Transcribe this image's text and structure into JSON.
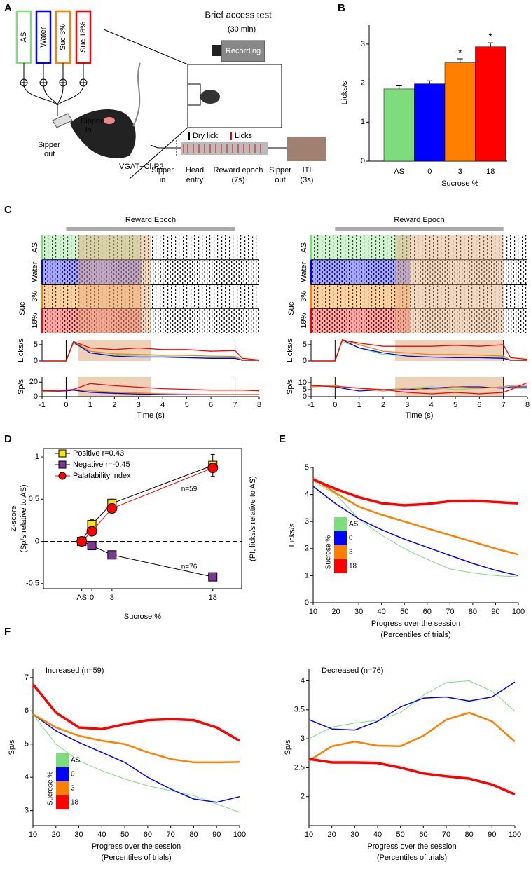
{
  "panel_labels": [
    "A",
    "B",
    "C",
    "D",
    "E",
    "F"
  ],
  "schematic": {
    "title": "Brief access test",
    "duration": "(30 min)",
    "camera": "Recording",
    "tubes": [
      "AS",
      "Water",
      "Suc 3%",
      "Suc 18%"
    ],
    "sipper_in": [
      "Sipper",
      "in"
    ],
    "sipper_out": [
      "Sipper",
      "out"
    ],
    "strain": "VGAT−ChR2",
    "dry_lick": "Dry lick",
    "licks": "Licks",
    "steps": [
      [
        "Sipper",
        "in"
      ],
      [
        "Head",
        "entry"
      ],
      [
        "Reward epoch",
        "(7s)"
      ],
      [
        "Sipper",
        "out"
      ],
      [
        "ITI",
        "(3s)"
      ]
    ]
  },
  "chart_data": [
    {
      "type": "bar",
      "ylabel": "Licks/s",
      "xlabel": "Sucrose %",
      "categories": [
        "AS",
        "0",
        "3",
        "18"
      ],
      "values": [
        1.85,
        1.98,
        2.52,
        2.93
      ],
      "errors": [
        0.08,
        0.08,
        0.1,
        0.1
      ],
      "significance": [
        null,
        null,
        "*",
        "*"
      ],
      "colors": [
        "#7ddd7d",
        "#0000ff",
        "#ff7f00",
        "#ff0000"
      ],
      "ylim": [
        0,
        3.5
      ],
      "yticks": [
        0,
        1,
        2,
        3
      ]
    },
    {
      "type": "raster_traces",
      "epoch_label": "Reward Epoch",
      "epoch": [
        0,
        7
      ],
      "shade": [
        0.5,
        3.5
      ],
      "raster_rows": [
        "AS",
        "Water",
        "3%",
        "18%"
      ],
      "raster_group": "Suc",
      "colors": [
        "#7ddd7d",
        "#0000ff",
        "#ff7f00",
        "#ff0000"
      ],
      "xlabel": "Time (s)",
      "xlim": [
        -1,
        8
      ],
      "xticks": [
        -1,
        0,
        1,
        2,
        3,
        4,
        5,
        6,
        7,
        8
      ],
      "x": [
        -1,
        0,
        0.3,
        1,
        2,
        3,
        4,
        5,
        6,
        7,
        7.3,
        8
      ],
      "licks": {
        "ylabel": "Licks/s",
        "ylim": [
          0,
          6.5
        ],
        "yticks": [
          0,
          5
        ],
        "series": [
          {
            "color": "#7ddd7d",
            "values": [
              0,
              0,
              5.5,
              2.5,
              1.8,
              1.5,
              1.5,
              1.2,
              1,
              1,
              0.3,
              0.2
            ]
          },
          {
            "color": "#0000ff",
            "values": [
              0,
              0,
              5.8,
              2.5,
              1.5,
              1.2,
              1.2,
              1,
              0.8,
              0.8,
              0.2,
              0.1
            ]
          },
          {
            "color": "#ff7f00",
            "values": [
              0,
              0,
              6,
              3,
              2.2,
              2,
              1.8,
              1.7,
              1.5,
              1.4,
              0.3,
              0.2
            ]
          },
          {
            "color": "#ff0000",
            "values": [
              0,
              0,
              6,
              4,
              3.5,
              4,
              3.5,
              3.5,
              3,
              3.2,
              0.8,
              0.3
            ]
          }
        ]
      },
      "spikes": {
        "ylabel": "Sp/s",
        "ylim": [
          0,
          27
        ],
        "yticks": [
          0,
          20
        ],
        "series": [
          {
            "color": "#7ddd7d",
            "values": [
              6,
              8,
              9,
              6,
              5,
              4,
              3,
              3,
              3,
              3,
              3,
              3
            ]
          },
          {
            "color": "#0000ff",
            "values": [
              7,
              8,
              9,
              6,
              4.5,
              3.5,
              3,
              2.5,
              2.5,
              2.5,
              2.5,
              2.5
            ]
          },
          {
            "color": "#ff7f00",
            "values": [
              7,
              9,
              10,
              8,
              6,
              5,
              4,
              3.5,
              3,
              3,
              3,
              3
            ]
          },
          {
            "color": "#ff0000",
            "values": [
              8,
              9,
              10,
              18,
              15,
              13,
              11,
              10,
              9,
              9,
              9,
              8
            ]
          }
        ]
      }
    },
    {
      "type": "raster_traces",
      "epoch_label": "Reward Epoch",
      "epoch": [
        0,
        7
      ],
      "shade": [
        2.5,
        7
      ],
      "raster_rows": [
        "AS",
        "Water",
        "3%",
        "18%"
      ],
      "raster_group": "Suc",
      "colors": [
        "#7ddd7d",
        "#0000ff",
        "#ff7f00",
        "#ff0000"
      ],
      "xlabel": "Time (s)",
      "xlim": [
        -1,
        8
      ],
      "xticks": [
        -1,
        0,
        1,
        2,
        3,
        4,
        5,
        6,
        7,
        8
      ],
      "x": [
        -1,
        0,
        0.3,
        1,
        2,
        3,
        4,
        5,
        6,
        7,
        7.3,
        8
      ],
      "licks": {
        "ylabel": "Licks/s",
        "ylim": [
          0,
          6.5
        ],
        "yticks": [
          0,
          5
        ],
        "series": [
          {
            "color": "#7ddd7d",
            "values": [
              0,
              0,
              6,
              4,
              2,
              1.5,
              1.2,
              1,
              1,
              1,
              0.3,
              0.2
            ]
          },
          {
            "color": "#0000ff",
            "values": [
              0,
              0,
              6.5,
              4,
              2.5,
              1.5,
              1.2,
              1,
              1,
              0.8,
              0.2,
              0.1
            ]
          },
          {
            "color": "#ff7f00",
            "values": [
              0,
              0,
              6.5,
              5,
              3,
              2.5,
              2,
              2,
              1.8,
              1.5,
              0.3,
              0.2
            ]
          },
          {
            "color": "#ff0000",
            "values": [
              0,
              0,
              6.5,
              5.5,
              4.5,
              4.5,
              4.5,
              4.8,
              4.5,
              5,
              1,
              0.5
            ]
          }
        ]
      },
      "spikes": {
        "ylabel": "Sp/s",
        "ylim": [
          0,
          14
        ],
        "yticks": [
          0,
          5,
          10
        ],
        "series": [
          {
            "color": "#7ddd7d",
            "values": [
              7,
              8,
              7,
              6,
              5,
              6,
              7,
              5,
              6,
              7,
              6,
              6
            ]
          },
          {
            "color": "#0000ff",
            "values": [
              8,
              7,
              6,
              4,
              5,
              5,
              6,
              7,
              7,
              6,
              7,
              7
            ]
          },
          {
            "color": "#ff7f00",
            "values": [
              7,
              8,
              7,
              6,
              4,
              6,
              5,
              7,
              6,
              7,
              8,
              8
            ]
          },
          {
            "color": "#ff0000",
            "values": [
              8,
              7,
              7,
              6,
              5,
              3,
              2,
              3,
              2,
              3,
              5,
              10
            ]
          }
        ]
      }
    },
    {
      "type": "errorbar",
      "ylabel": [
        "Z-score",
        "(Sp/s relative to AS)"
      ],
      "y2label": "(PI, licks/s relative to AS)",
      "xlabel": "Sucrose %",
      "x": [
        -1.5,
        0,
        3,
        18
      ],
      "xlim": [
        -7.2,
        22.3
      ],
      "xticks": [
        {
          "value": -1.5,
          "label": "AS"
        },
        0,
        3,
        18
      ],
      "ylim": [
        -0.56,
        1.1
      ],
      "yticks": [
        -0.5,
        0,
        0.5,
        1
      ],
      "hline": 0,
      "annotations": [
        "n=59",
        "n=76"
      ],
      "series": [
        {
          "name": "Positive r=0.43",
          "color": "#f5e21b",
          "marker": "square",
          "values": [
            0,
            0.2,
            0.45,
            0.9
          ],
          "errors": [
            0,
            0.06,
            0.05,
            0.13
          ]
        },
        {
          "name": "Negative r=-0.45",
          "color": "#7b3a8f",
          "marker": "square",
          "values": [
            0,
            -0.05,
            -0.16,
            -0.42
          ],
          "errors": [
            0,
            0.03,
            0.03,
            0.04
          ]
        },
        {
          "name": "Palatability index",
          "color": "#ff0000",
          "marker": "circle",
          "values": [
            0,
            0.12,
            0.39,
            0.87
          ],
          "errors": [
            0,
            0.03,
            0.03,
            0.05
          ]
        }
      ]
    },
    {
      "type": "line",
      "ylabel": "Licks/s",
      "xlabel": [
        "Progress over the session",
        "(Percentiles of trials)"
      ],
      "legend_title": "Sucrose %",
      "x": [
        10,
        20,
        30,
        40,
        50,
        60,
        70,
        80,
        90,
        100
      ],
      "xlim": [
        10,
        100
      ],
      "xticks": [
        10,
        20,
        30,
        40,
        50,
        60,
        70,
        80,
        90,
        100
      ],
      "ylim": [
        0,
        5
      ],
      "yticks": [
        0,
        1,
        2,
        3,
        4,
        5
      ],
      "series": [
        {
          "name": "AS",
          "color": "#7ddd7d",
          "width": 1,
          "values": [
            4.5,
            4.0,
            3.1,
            2.5,
            2.0,
            1.6,
            1.25,
            1.1,
            1.0,
            0.95
          ]
        },
        {
          "name": "0",
          "color": "#0000ff",
          "width": 1.5,
          "values": [
            4.3,
            3.65,
            3.1,
            2.7,
            2.35,
            2.05,
            1.75,
            1.45,
            1.2,
            1.0
          ]
        },
        {
          "name": "3",
          "color": "#ff7f00",
          "width": 2.5,
          "values": [
            4.6,
            4.05,
            3.55,
            3.25,
            3.0,
            2.75,
            2.5,
            2.25,
            2.0,
            1.78
          ]
        },
        {
          "name": "18",
          "color": "#ff0000",
          "width": 3.5,
          "values": [
            4.55,
            4.2,
            3.9,
            3.68,
            3.6,
            3.65,
            3.75,
            3.77,
            3.72,
            3.67
          ]
        }
      ]
    },
    {
      "type": "line",
      "title": "Increased (n=59)",
      "ylabel": "Sp/s",
      "xlabel": [
        "Progress over the session",
        "(Percentiles of trials)"
      ],
      "legend_title": "Sucrose %",
      "x": [
        10,
        20,
        30,
        40,
        50,
        60,
        70,
        80,
        90,
        100
      ],
      "xlim": [
        10,
        100
      ],
      "xticks": [
        10,
        20,
        30,
        40,
        50,
        60,
        70,
        80,
        90,
        100
      ],
      "ylim": [
        2.55,
        7.25
      ],
      "yticks": [
        3,
        4,
        5,
        6,
        7
      ],
      "series": [
        {
          "name": "AS",
          "color": "#7ddd7d",
          "width": 1,
          "values": [
            5.9,
            5.0,
            4.5,
            4.2,
            3.95,
            3.75,
            3.6,
            3.45,
            3.2,
            2.95
          ]
        },
        {
          "name": "0",
          "color": "#0000ff",
          "width": 1.5,
          "values": [
            5.9,
            5.4,
            5.05,
            4.75,
            4.45,
            4.0,
            3.65,
            3.35,
            3.25,
            3.42
          ]
        },
        {
          "name": "3",
          "color": "#ff7f00",
          "width": 2.5,
          "values": [
            5.9,
            5.5,
            5.25,
            5.1,
            5.0,
            4.75,
            4.55,
            4.45,
            4.45,
            4.46
          ]
        },
        {
          "name": "18",
          "color": "#ff0000",
          "width": 3.5,
          "values": [
            6.8,
            5.95,
            5.5,
            5.45,
            5.6,
            5.72,
            5.75,
            5.72,
            5.5,
            5.1
          ]
        }
      ]
    },
    {
      "type": "line",
      "title": "Decreased (n=76)",
      "ylabel": "Sp/s",
      "xlabel": [
        "Progress over the session",
        "(Percentiles of trials)"
      ],
      "x": [
        10,
        20,
        30,
        40,
        50,
        60,
        70,
        80,
        90,
        100
      ],
      "xlim": [
        10,
        100
      ],
      "xticks": [
        10,
        20,
        30,
        40,
        50,
        60,
        70,
        80,
        90,
        100
      ],
      "ylim": [
        1.5,
        4.2
      ],
      "yticks": [
        2,
        2.5,
        3,
        3.5,
        4
      ],
      "series": [
        {
          "color": "#7ddd7d",
          "width": 1,
          "values": [
            3.0,
            3.2,
            3.27,
            3.32,
            3.45,
            3.75,
            3.97,
            4.0,
            3.82,
            3.48
          ]
        },
        {
          "color": "#0000ff",
          "width": 1.5,
          "values": [
            3.33,
            3.17,
            3.15,
            3.3,
            3.55,
            3.7,
            3.72,
            3.65,
            3.72,
            3.98
          ]
        },
        {
          "color": "#ff7f00",
          "width": 2.5,
          "values": [
            2.62,
            2.87,
            2.95,
            2.88,
            2.87,
            3.05,
            3.33,
            3.45,
            3.3,
            2.95
          ]
        },
        {
          "color": "#ff0000",
          "width": 3.5,
          "values": [
            2.65,
            2.59,
            2.59,
            2.58,
            2.5,
            2.4,
            2.35,
            2.31,
            2.21,
            2.04
          ]
        }
      ]
    }
  ]
}
